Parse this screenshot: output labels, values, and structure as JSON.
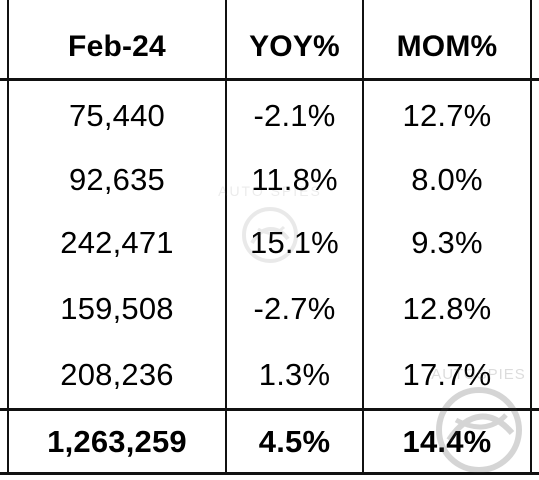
{
  "chart_data": {
    "type": "table",
    "columns": [
      "Feb-24",
      "YOY%",
      "MOM%"
    ],
    "rows": [
      [
        "75,440",
        "-2.1%",
        "12.7%"
      ],
      [
        "92,635",
        "11.8%",
        "8.0%"
      ],
      [
        "242,471",
        "15.1%",
        "9.3%"
      ],
      [
        "159,508",
        "-2.7%",
        "12.8%"
      ],
      [
        "208,236",
        "1.3%",
        "17.7%"
      ]
    ],
    "total": [
      "1,263,259",
      "4.5%",
      "14.4%"
    ]
  },
  "watermark": {
    "text_center": "AUTO SPIES",
    "text_right": "AUTOSPIES",
    "icon": "globe-logo-icon",
    "color": "#9a9a9a"
  }
}
